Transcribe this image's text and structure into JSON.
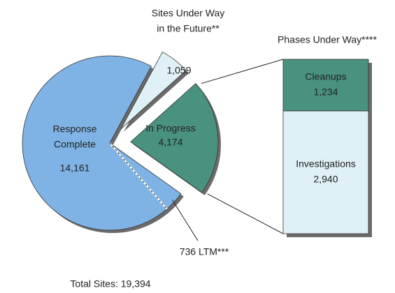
{
  "chart_data": {
    "type": "pie",
    "categories": [
      [
        "Response",
        "Complete"
      ],
      [
        "Sites Under Way",
        "in the Future**"
      ],
      [
        "In Progress"
      ]
    ],
    "values": [
      14161,
      1059,
      4174
    ],
    "value_labels": [
      "14,161",
      "1,059",
      "4,174"
    ],
    "colors": [
      "#7fb3e6",
      "#dff1f6",
      "#4a9280"
    ],
    "ltm": {
      "value": 736,
      "label": "736 LTM***"
    },
    "total": {
      "value": 19394,
      "label": "Total Sites: 19,394"
    },
    "bar": {
      "title": "Phases Under Way****",
      "categories": [
        "Investigations",
        "Cleanups"
      ],
      "values": [
        2940,
        1234
      ],
      "value_labels": [
        "2,940",
        "1,234"
      ],
      "colors": [
        "#dff1f6",
        "#4a9280"
      ]
    }
  }
}
